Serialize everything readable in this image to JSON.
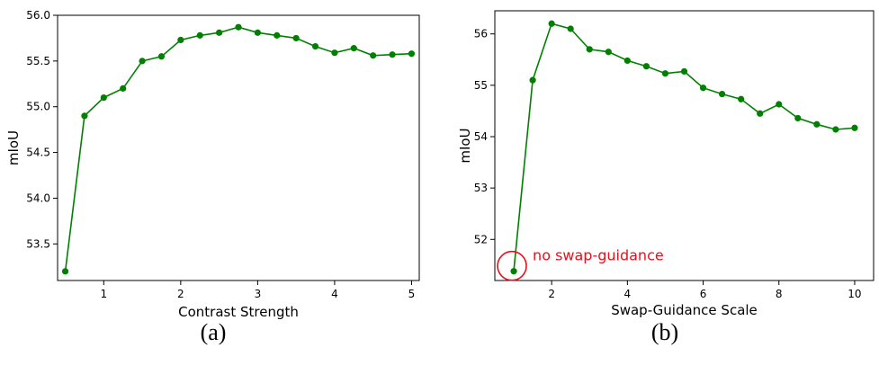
{
  "colors": {
    "line": "#008000",
    "marker": "#008000",
    "annotation": "#e8101a",
    "axis": "#000000"
  },
  "chart_data": [
    {
      "type": "line",
      "caption": "(a)",
      "xlabel": "Contrast Strength",
      "ylabel": "mIoU",
      "xlim": [
        0.4,
        5.1
      ],
      "ylim": [
        53.1,
        56.0
      ],
      "xticks": [
        1,
        2,
        3,
        4,
        5
      ],
      "xtick_labels": [
        "1",
        "2",
        "3",
        "4",
        "5"
      ],
      "yticks": [
        53.5,
        54.0,
        54.5,
        55.0,
        55.5,
        56.0
      ],
      "ytick_labels": [
        "53.5",
        "54.0",
        "54.5",
        "55.0",
        "55.5",
        "56.0"
      ],
      "grid": false,
      "x": [
        0.5,
        0.75,
        1.0,
        1.25,
        1.5,
        1.75,
        2.0,
        2.25,
        2.5,
        2.75,
        3.0,
        3.25,
        3.5,
        3.75,
        4.0,
        4.25,
        4.5,
        4.75,
        5.0
      ],
      "y": [
        53.2,
        54.9,
        55.1,
        55.2,
        55.5,
        55.55,
        55.73,
        55.78,
        55.81,
        55.87,
        55.81,
        55.78,
        55.75,
        55.66,
        55.59,
        55.64,
        55.56,
        55.57,
        55.58
      ]
    },
    {
      "type": "line",
      "caption": "(b)",
      "xlabel": "Swap-Guidance Scale",
      "ylabel": "mIoU",
      "xlim": [
        0.5,
        10.5
      ],
      "ylim": [
        51.2,
        56.45
      ],
      "xticks": [
        2,
        4,
        6,
        8,
        10
      ],
      "xtick_labels": [
        "2",
        "4",
        "6",
        "8",
        "10"
      ],
      "yticks": [
        52,
        53,
        54,
        55,
        56
      ],
      "ytick_labels": [
        "52",
        "53",
        "54",
        "55",
        "56"
      ],
      "grid": false,
      "x": [
        1.0,
        1.5,
        2.0,
        2.5,
        3.0,
        3.5,
        4.0,
        4.5,
        5.0,
        5.5,
        6.0,
        6.5,
        7.0,
        7.5,
        8.0,
        8.5,
        9.0,
        9.5,
        10.0
      ],
      "y": [
        51.38,
        55.1,
        56.2,
        56.1,
        55.7,
        55.65,
        55.48,
        55.37,
        55.23,
        55.27,
        54.95,
        54.83,
        54.73,
        54.45,
        54.63,
        54.36,
        54.24,
        54.14,
        54.17
      ],
      "annotations": [
        {
          "text": "no swap-guidance",
          "x": 1.0,
          "y": 51.38,
          "style": "circle"
        }
      ]
    }
  ]
}
